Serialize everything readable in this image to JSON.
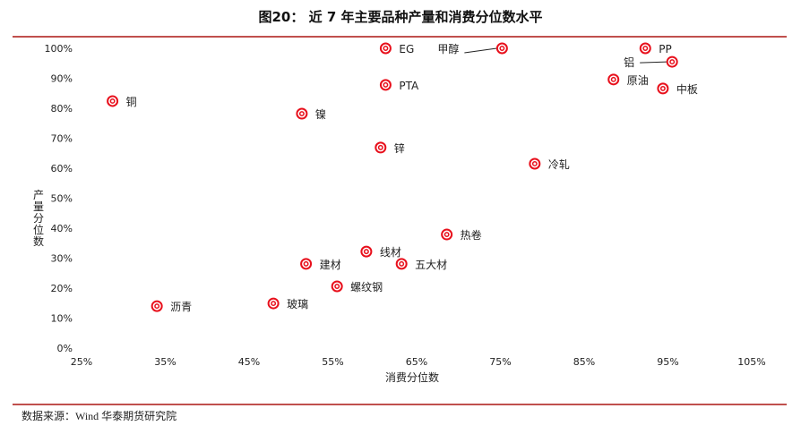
{
  "title": "图20： 近 7 年主要品种产量和消费分位数水平",
  "source": "数据来源：Wind 华泰期货研究院",
  "colors": {
    "accent_rule": "#c0504d",
    "marker": "#e8101c"
  },
  "chart_data": {
    "type": "scatter",
    "title": "近 7 年主要品种产量和消费分位数水平",
    "xlabel": "消费分位数",
    "ylabel": "产量分位数",
    "xlim": [
      25,
      105
    ],
    "ylim": [
      0,
      100
    ],
    "x_ticks": [
      "25%",
      "35%",
      "45%",
      "55%",
      "65%",
      "75%",
      "85%",
      "95%",
      "105%"
    ],
    "y_ticks": [
      "0%",
      "10%",
      "20%",
      "30%",
      "40%",
      "50%",
      "60%",
      "70%",
      "80%",
      "90%",
      "100%"
    ],
    "grid": false,
    "legend": null,
    "points": [
      {
        "label": "铜",
        "x": 28.7,
        "y": 82.4
      },
      {
        "label": "沥青",
        "x": 34.0,
        "y": 14.0
      },
      {
        "label": "玻璃",
        "x": 47.9,
        "y": 14.9
      },
      {
        "label": "建材",
        "x": 51.8,
        "y": 28.1
      },
      {
        "label": "螺纹钢",
        "x": 55.5,
        "y": 20.6
      },
      {
        "label": "线材",
        "x": 59.0,
        "y": 32.2
      },
      {
        "label": "五大材",
        "x": 63.2,
        "y": 28.1
      },
      {
        "label": "热卷",
        "x": 68.6,
        "y": 37.9
      },
      {
        "label": "镍",
        "x": 51.3,
        "y": 78.2
      },
      {
        "label": "锌",
        "x": 60.7,
        "y": 66.9
      },
      {
        "label": "EG",
        "x": 61.3,
        "y": 100.0
      },
      {
        "label": "PTA",
        "x": 61.3,
        "y": 87.8
      },
      {
        "label": "甲醇",
        "x": 75.2,
        "y": 100.0
      },
      {
        "label": "冷轧",
        "x": 79.1,
        "y": 61.5
      },
      {
        "label": "PP",
        "x": 92.3,
        "y": 100.0
      },
      {
        "label": "铝",
        "x": 95.5,
        "y": 95.5
      },
      {
        "label": "原油",
        "x": 88.5,
        "y": 89.6
      },
      {
        "label": "中板",
        "x": 94.4,
        "y": 86.6
      }
    ]
  }
}
